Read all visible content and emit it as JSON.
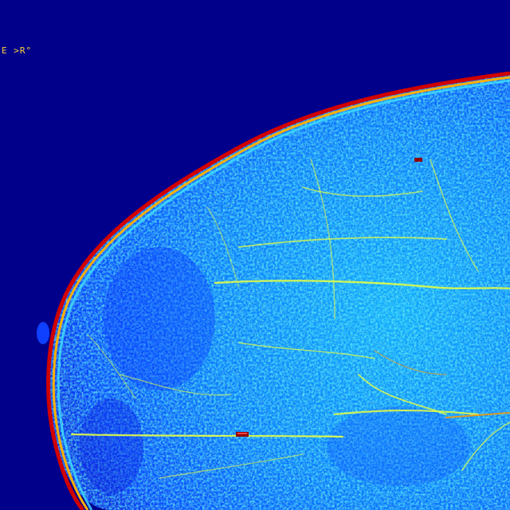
{
  "image": {
    "description_kind": "false-color mammogram-style tissue scan",
    "background_color": "#00008a",
    "colormap": [
      "#00008a",
      "#0010ff",
      "#0090ff",
      "#20e0ff",
      "#b0ff50",
      "#ffe000",
      "#ff6000",
      "#d00000"
    ],
    "corner_label": "E >R°"
  }
}
